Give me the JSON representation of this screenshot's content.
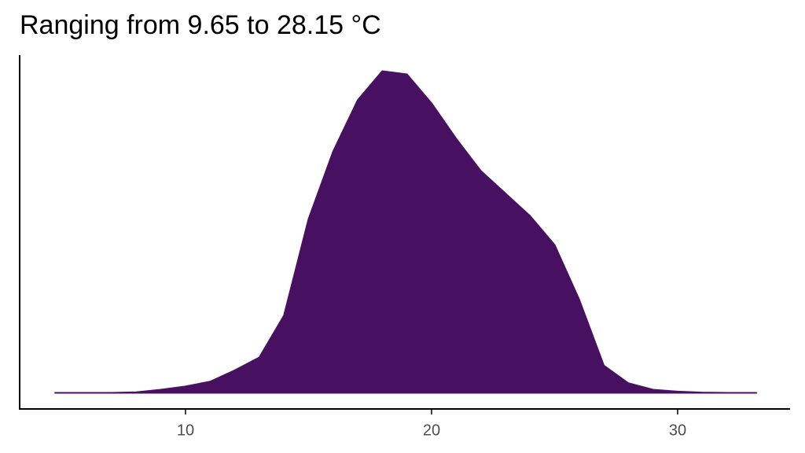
{
  "chart_data": {
    "type": "area",
    "title": "Ranging from 9.65 to 28.15 °C",
    "x": [
      4.7,
      6,
      7,
      8,
      9,
      10,
      11,
      12,
      13,
      14,
      15,
      16,
      17,
      18,
      19,
      20,
      21,
      22,
      23,
      24,
      25,
      26,
      27,
      28,
      29,
      30,
      31,
      32,
      33.2
    ],
    "series": [
      {
        "color": "#481060",
        "values": [
          0,
          0,
          0,
          0.0002,
          0.001,
          0.002,
          0.0035,
          0.007,
          0.011,
          0.024,
          0.054,
          0.075,
          0.091,
          0.1,
          0.099,
          0.09,
          0.079,
          0.069,
          0.062,
          0.055,
          0.046,
          0.029,
          0.0085,
          0.003,
          0.001,
          0.0004,
          0.0001,
          0,
          0
        ]
      }
    ],
    "xlim": [
      3.26,
      34.57
    ],
    "xticks": [
      10,
      20,
      30
    ],
    "ylim": [
      -0.005,
      0.105
    ]
  }
}
